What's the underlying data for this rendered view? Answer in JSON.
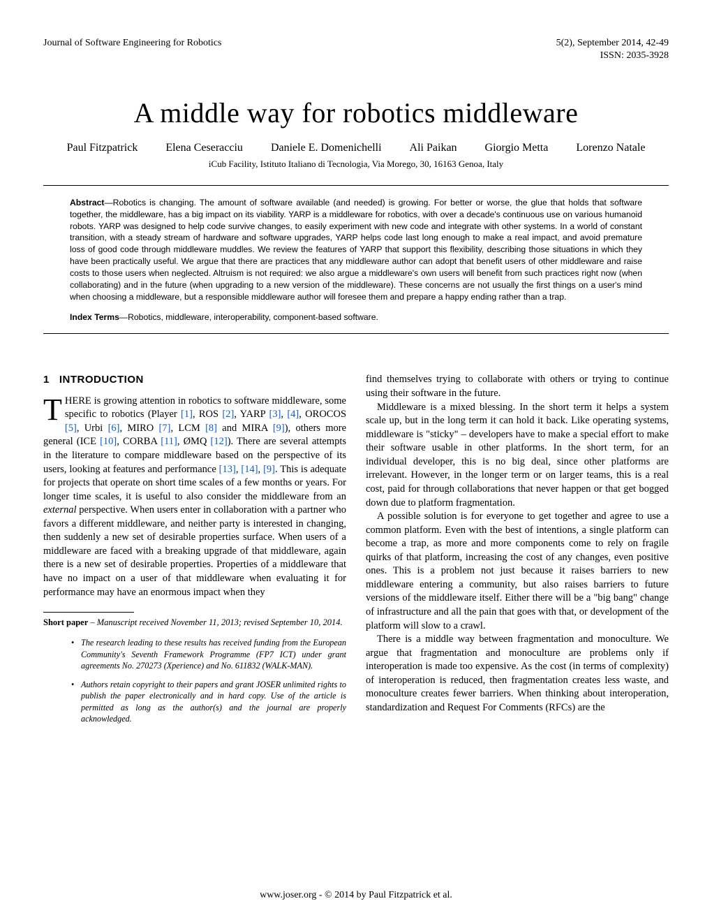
{
  "header": {
    "journal": "Journal of Software Engineering for Robotics",
    "issue": "5(2), September 2014, 42-49",
    "issn": "ISSN: 2035-3928"
  },
  "title": "A middle way for robotics middleware",
  "authors": [
    "Paul Fitzpatrick",
    "Elena Ceseracciu",
    "Daniele E. Domenichelli",
    "Ali Paikan",
    "Giorgio Metta",
    "Lorenzo Natale"
  ],
  "affiliation": "iCub Facility, Istituto Italiano di Tecnologia, Via Morego, 30, 16163 Genoa, Italy",
  "abstract_label": "Abstract",
  "abstract_body": "—Robotics is changing. The amount of software available (and needed) is growing. For better or worse, the glue that holds that software together, the middleware, has a big impact on its viability. YARP is a middleware for robotics, with over a decade's continuous use on various humanoid robots. YARP was designed to help code survive changes, to easily experiment with new code and integrate with other systems. In a world of constant transition, with a steady stream of hardware and software upgrades, YARP helps code last long enough to make a real impact, and avoid premature loss of good code through middleware muddles. We review the features of YARP that support this flexibility, describing those situations in which they have been practically useful. We argue that there are practices that any middleware author can adopt that benefit users of other middleware and raise costs to those users when neglected. Altruism is not required: we also argue a middleware's own users will benefit from such practices right now (when collaborating) and in the future (when upgrading to a new version of the middleware). These concerns are not usually the first things on a user's mind when choosing a middleware, but a responsible middleware author will foresee them and prepare a happy ending rather than a trap.",
  "index_terms_label": "Index Terms",
  "index_terms_body": "—Robotics, middleware, interoperability, component-based software.",
  "section": {
    "num": "1",
    "title": "INTRODUCTION"
  },
  "left_col": {
    "p1a": "HERE is growing attention in robotics to software middleware, some specific to robotics (Player ",
    "p1b": ", ROS ",
    "p1c": ", YARP ",
    "p1d": ", ",
    "p1e": ", OROCOS ",
    "p1f": ", Urbi ",
    "p1g": ", MIRO ",
    "p1h": ", LCM ",
    "p1i": " and MIRA ",
    "p1j": "), others more general (ICE ",
    "p1k": ", CORBA ",
    "p1l": ", ØMQ ",
    "p1m": "). There are several attempts in the literature to compare middleware based on the perspective of its users, looking at features and performance ",
    "p1n": ", ",
    "p1o": ", ",
    "p1p": ". This is adequate for projects that operate on short time scales of a few months or years. For longer time scales, it is useful to also consider the middleware from an ",
    "p1q": " perspective. When users enter in collaboration with a partner who favors a different middleware, and neither party is interested in changing, then suddenly a new set of desirable properties surface. When users of a middleware are faced with a breaking upgrade of that middleware, again there is a new set of desirable properties. Properties of a middleware that have no impact on a user of that middleware when evaluating it for performance may have an enormous impact when they",
    "external": "external"
  },
  "refs": {
    "r1": "[1]",
    "r2": "[2]",
    "r3": "[3]",
    "r4": "[4]",
    "r5": "[5]",
    "r6": "[6]",
    "r7": "[7]",
    "r8": "[8]",
    "r9": "[9]",
    "r10": "[10]",
    "r11": "[11]",
    "r12": "[12]",
    "r13": "[13]",
    "r14": "[14]"
  },
  "shortpaper": {
    "label": "Short paper",
    "body": " – Manuscript received November 11, 2013; revised September 10, 2014."
  },
  "footnotes": {
    "f1": "The research leading to these results has received funding from the European Community's Seventh Framework Programme (FP7 ICT) under grant agreements No. 270273 (Xperience) and No. 611832 (WALK-MAN).",
    "f2": "Authors retain copyright to their papers and grant JOSER unlimited rights to publish the paper electronically and in hard copy. Use of the article is permitted as long as the author(s) and the journal are properly acknowledged."
  },
  "right_col": {
    "p1": "find themselves trying to collaborate with others or trying to continue using their software in the future.",
    "p2": "Middleware is a mixed blessing. In the short term it helps a system scale up, but in the long term it can hold it back. Like operating systems, middleware is \"sticky\" – developers have to make a special effort to make their software usable in other platforms. In the short term, for an individual developer, this is no big deal, since other platforms are irrelevant. However, in the longer term or on larger teams, this is a real cost, paid for through collaborations that never happen or that get bogged down due to platform fragmentation.",
    "p3": "A possible solution is for everyone to get together and agree to use a common platform. Even with the best of intentions, a single platform can become a trap, as more and more components come to rely on fragile quirks of that platform, increasing the cost of any changes, even positive ones. This is a problem not just because it raises barriers to new middleware entering a community, but also raises barriers to future versions of the middleware itself. Either there will be a \"big bang\" change of infrastructure and all the pain that goes with that, or development of the platform will slow to a crawl.",
    "p4": "There is a middle way between fragmentation and monoculture. We argue that fragmentation and monoculture are problems only if interoperation is made too expensive. As the cost (in terms of complexity) of interoperation is reduced, then fragmentation creates less waste, and monoculture creates fewer barriers. When thinking about interoperation, standardization and Request For Comments (RFCs) are the"
  },
  "footer": "www.joser.org - © 2014  by Paul Fitzpatrick et al."
}
